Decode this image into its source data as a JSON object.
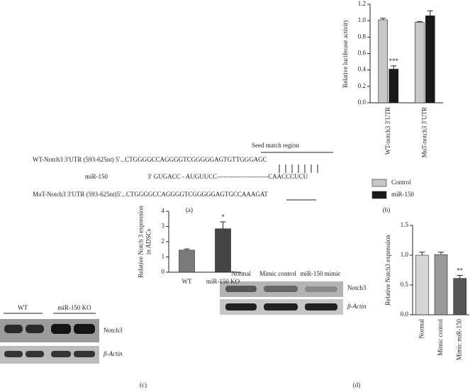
{
  "chart_data": [
    {
      "type": "bar",
      "ylabel": [
        "Relative luciferase activity"
      ],
      "categories": [
        "WT-notch3 3′UTR",
        "MuT-notch3 3′UTR"
      ],
      "series": [
        {
          "name": "Control",
          "color": "#c8c8c8",
          "values": [
            1.01,
            0.98
          ],
          "errors": [
            0.02,
            0.01
          ]
        },
        {
          "name": "miR-150",
          "color": "#1a1a1a",
          "values": [
            0.41,
            1.06
          ],
          "errors": [
            0.04,
            0.06
          ]
        }
      ],
      "annotations": [
        "***"
      ],
      "ylim": [
        0,
        1.2
      ],
      "yticks": [
        {
          "value": 0,
          "label": "0.0"
        },
        0.2,
        0.4,
        0.6,
        0.8,
        {
          "value": 1,
          "label": "1.0"
        },
        1.2
      ]
    },
    {
      "type": "bar",
      "ylabel": [
        "Relative Notch 3 expression",
        "in ADSCs"
      ],
      "categories": [
        "WT",
        "miR-150 KO"
      ],
      "colors": [
        "#7a7a7a",
        "#444444"
      ],
      "values": [
        1.45,
        2.85
      ],
      "errors": [
        0.08,
        0.45
      ],
      "annotations": [
        "*"
      ],
      "ylim": [
        0,
        4
      ],
      "yticks": [
        0,
        1,
        2,
        3,
        4
      ]
    },
    {
      "type": "bar",
      "ylabel": [
        "Relative Notch3 expression"
      ],
      "categories": [
        "Normal",
        "Mimic control",
        "Mimic miR-150"
      ],
      "colors": [
        "#d6d6d6",
        "#9a9a9a",
        "#555555"
      ],
      "values": [
        1.0,
        1.01,
        0.61
      ],
      "errors": [
        0.05,
        0.04,
        0.05
      ],
      "annotations": [
        "**"
      ],
      "ylim": [
        0,
        1.5
      ],
      "yticks": [
        {
          "value": 0,
          "label": "0.0"
        },
        0.5,
        {
          "value": 1,
          "label": "1.0"
        },
        1.5
      ]
    }
  ],
  "sequences": {
    "seed_label": "Seed match region",
    "wt": "WT-Notch3 3′UTR (593-625nt) 5′...CTGGGGCCAGGGGTCGGGGGAGTGTTGGGAGC",
    "mir_name": "miR-150",
    "mir": "3′ GUGACC - AUGUUCC------------------------CAACCCUCU",
    "mut": "MuT-Notch3 3′UTR (593-625nt)5′...CTGGGGCCAGGGGTCGGGGGAGTGCCAAAGAT"
  },
  "blot_c": {
    "groups": [
      "WT",
      "miR-150 KO"
    ],
    "rows": [
      "Notch3",
      "β-Actin"
    ]
  },
  "blot_d": {
    "lanes": [
      "Normal",
      "Mimic control",
      "miR-150 mimic"
    ],
    "rows": [
      "Notch3",
      "β-Actin"
    ]
  },
  "panel_labels": [
    "(a)",
    "(b)",
    "(c)",
    "(d)"
  ]
}
